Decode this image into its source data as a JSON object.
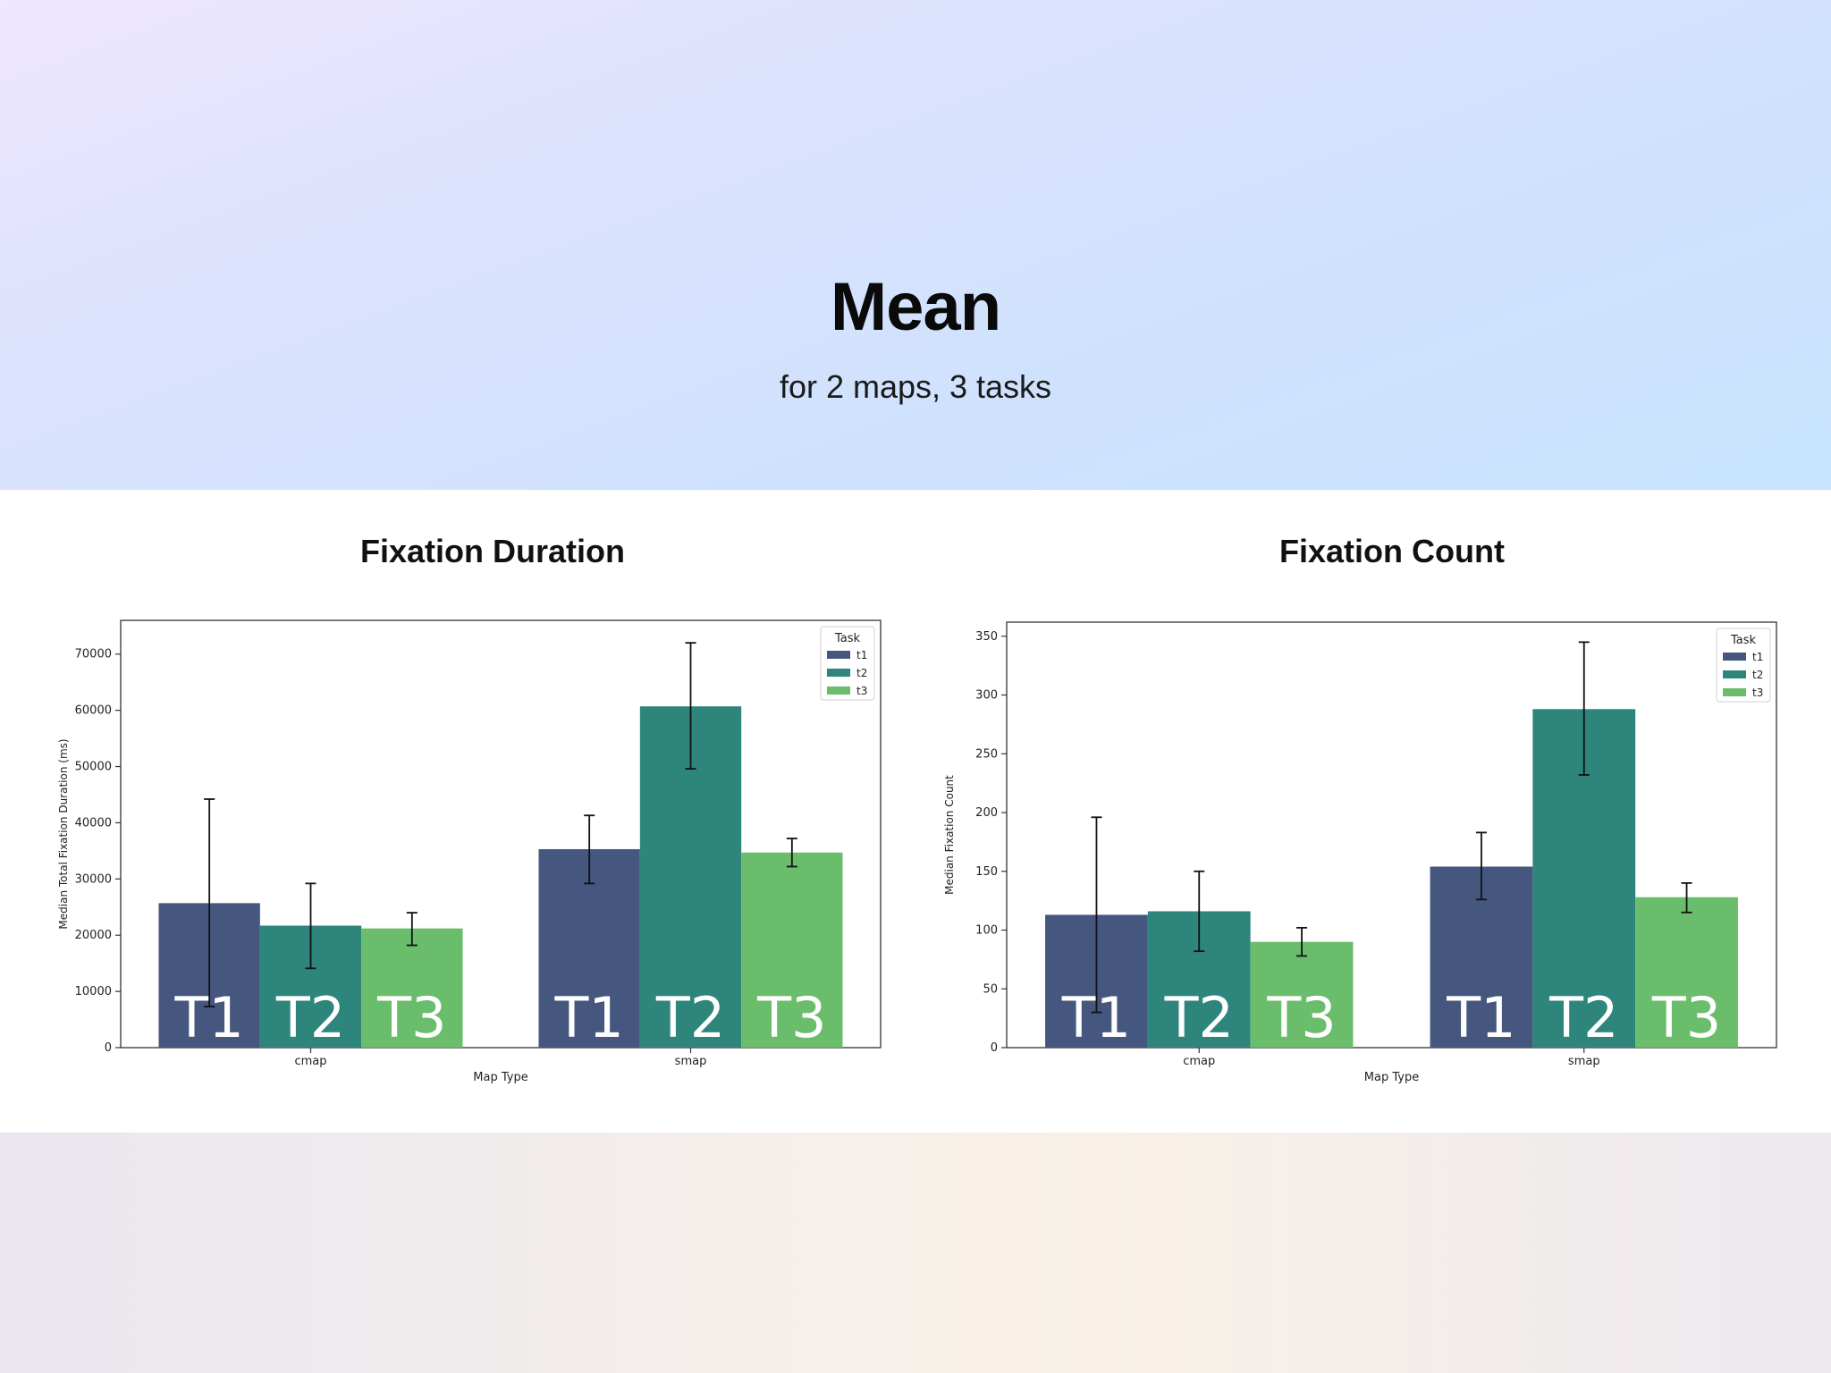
{
  "slide": {
    "title": "Mean",
    "subtitle": "for 2 maps, 3 tasks"
  },
  "colors": {
    "t1": "#45567f",
    "t2": "#2e857c",
    "t3": "#6abd6b"
  },
  "chart_data": [
    {
      "type": "bar",
      "title": "Fixation Duration",
      "xlabel": "Map Type",
      "ylabel": "Median Total Fixation Duration (ms)",
      "categories": [
        "cmap",
        "smap"
      ],
      "ylim": [
        0,
        76000
      ],
      "yticks": [
        0,
        10000,
        20000,
        30000,
        40000,
        50000,
        60000,
        70000
      ],
      "legend": {
        "title": "Task",
        "position": "top-right"
      },
      "bar_labels": [
        "T1",
        "T2",
        "T3"
      ],
      "series": [
        {
          "name": "t1",
          "values": [
            25700,
            35300
          ],
          "err_low": [
            7300,
            29200
          ],
          "err_high": [
            44200,
            41300
          ]
        },
        {
          "name": "t2",
          "values": [
            21700,
            60700
          ],
          "err_low": [
            14100,
            49600
          ],
          "err_high": [
            29200,
            72000
          ]
        },
        {
          "name": "t3",
          "values": [
            21200,
            34700
          ],
          "err_low": [
            18200,
            32200
          ],
          "err_high": [
            24000,
            37200
          ]
        }
      ]
    },
    {
      "type": "bar",
      "title": "Fixation Count",
      "xlabel": "Map Type",
      "ylabel": "Median Fixation Count",
      "categories": [
        "cmap",
        "smap"
      ],
      "ylim": [
        0,
        362
      ],
      "yticks": [
        0,
        50,
        100,
        150,
        200,
        250,
        300,
        350
      ],
      "legend": {
        "title": "Task",
        "position": "top-right"
      },
      "bar_labels": [
        "T1",
        "T2",
        "T3"
      ],
      "series": [
        {
          "name": "t1",
          "values": [
            113,
            154
          ],
          "err_low": [
            30,
            126
          ],
          "err_high": [
            196,
            183
          ]
        },
        {
          "name": "t2",
          "values": [
            116,
            288
          ],
          "err_low": [
            82,
            232
          ],
          "err_high": [
            150,
            345
          ]
        },
        {
          "name": "t3",
          "values": [
            90,
            128
          ],
          "err_low": [
            78,
            115
          ],
          "err_high": [
            102,
            140
          ]
        }
      ]
    }
  ]
}
